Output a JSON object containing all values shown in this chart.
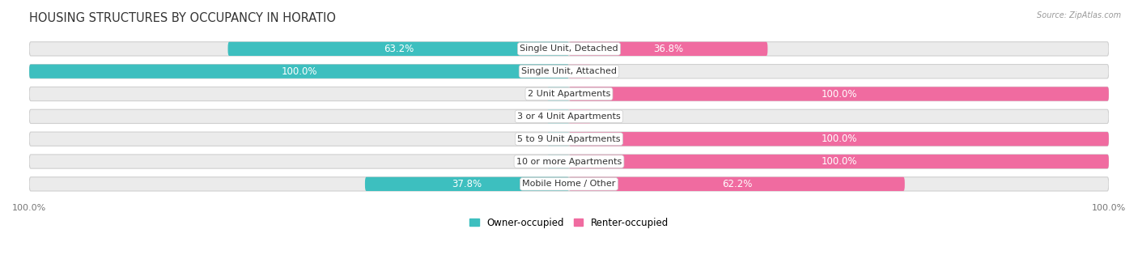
{
  "title": "HOUSING STRUCTURES BY OCCUPANCY IN HORATIO",
  "source": "Source: ZipAtlas.com",
  "categories": [
    "Single Unit, Detached",
    "Single Unit, Attached",
    "2 Unit Apartments",
    "3 or 4 Unit Apartments",
    "5 to 9 Unit Apartments",
    "10 or more Apartments",
    "Mobile Home / Other"
  ],
  "owner_pct": [
    63.2,
    100.0,
    0.0,
    0.0,
    0.0,
    0.0,
    37.8
  ],
  "renter_pct": [
    36.8,
    0.0,
    100.0,
    0.0,
    100.0,
    100.0,
    62.2
  ],
  "owner_color": "#3DBFBF",
  "renter_color": "#F06BA0",
  "owner_color_light": "#A8DEDE",
  "renter_color_light": "#F9AECB",
  "bar_bg_color": "#EBEBEB",
  "bar_border_color": "#D0D0D0",
  "bar_height": 0.62,
  "figsize": [
    14.06,
    3.41
  ],
  "dpi": 100,
  "title_fontsize": 10.5,
  "label_fontsize": 8.5,
  "category_fontsize": 8,
  "bg_color": "#FFFFFF",
  "legend_owner": "Owner-occupied",
  "legend_renter": "Renter-occupied",
  "xlim_left": -100,
  "xlim_right": 100
}
